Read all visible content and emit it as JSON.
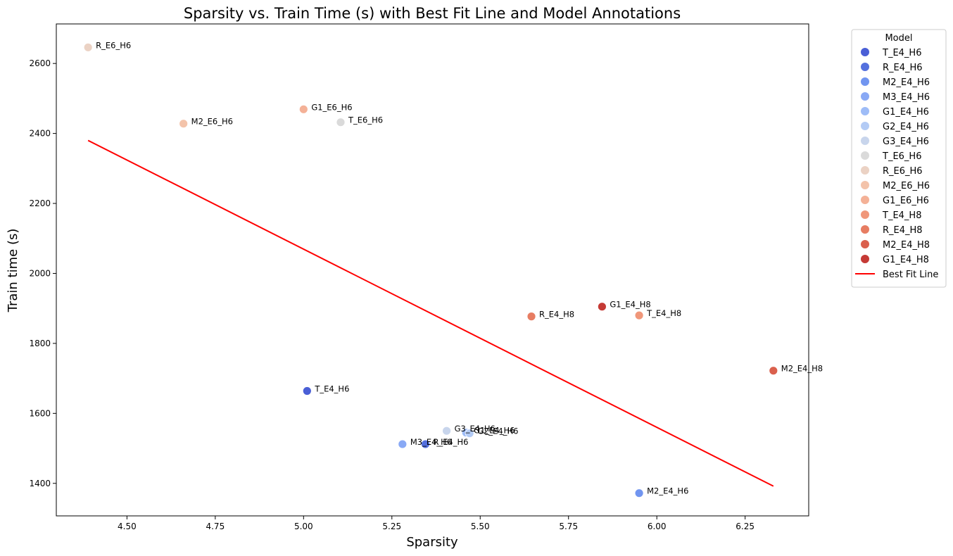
{
  "chart_data": {
    "type": "scatter",
    "title": "Sparsity vs. Train Time (s) with Best Fit Line and Model Annotations",
    "xlabel": "Sparsity",
    "ylabel": "Train time (s)",
    "xlim": [
      4.3,
      6.43
    ],
    "ylim": [
      1307,
      2713
    ],
    "xticks": [
      4.5,
      4.75,
      5.0,
      5.25,
      5.5,
      5.75,
      6.0,
      6.25
    ],
    "xtick_labels": [
      "4.50",
      "4.75",
      "5.00",
      "5.25",
      "5.50",
      "5.75",
      "6.00",
      "6.25"
    ],
    "yticks": [
      1400,
      1600,
      1800,
      2000,
      2200,
      2400,
      2600
    ],
    "ytick_labels": [
      "1400",
      "1600",
      "1800",
      "2000",
      "2200",
      "2400",
      "2600"
    ],
    "grid": false,
    "legend": {
      "title": "Model",
      "placement": "outside-right-top"
    },
    "points": [
      {
        "label": "T_E4_H6",
        "x": 5.01,
        "y": 1664,
        "color": "#4a5fd6"
      },
      {
        "label": "R_E4_H6",
        "x": 5.345,
        "y": 1512,
        "color": "#5470de"
      },
      {
        "label": "M2_E4_H6",
        "x": 5.95,
        "y": 1372,
        "color": "#7195f0"
      },
      {
        "label": "M3_E4_H6",
        "x": 5.28,
        "y": 1512,
        "color": "#89a9f5"
      },
      {
        "label": "G1_E4_H6",
        "x": 5.46,
        "y": 1545,
        "color": "#9ebcf7"
      },
      {
        "label": "G2_E4_H6",
        "x": 5.47,
        "y": 1543,
        "color": "#b3cbf5"
      },
      {
        "label": "G3_E4_H6",
        "x": 5.405,
        "y": 1550,
        "color": "#c8d5ec"
      },
      {
        "label": "T_E6_H6",
        "x": 5.105,
        "y": 2432,
        "color": "#dadada"
      },
      {
        "label": "R_E6_H6",
        "x": 4.39,
        "y": 2646,
        "color": "#ebd2c4"
      },
      {
        "label": "M2_E6_H6",
        "x": 4.66,
        "y": 2428,
        "color": "#f3c3aa"
      },
      {
        "label": "G1_E6_H6",
        "x": 5.0,
        "y": 2469,
        "color": "#f4b197"
      },
      {
        "label": "T_E4_H8",
        "x": 5.95,
        "y": 1880,
        "color": "#f0977a"
      },
      {
        "label": "R_E4_H8",
        "x": 5.645,
        "y": 1877,
        "color": "#e77d62"
      },
      {
        "label": "M2_E4_H8",
        "x": 6.33,
        "y": 1722,
        "color": "#da604d"
      },
      {
        "label": "G1_E4_H8",
        "x": 5.845,
        "y": 1905,
        "color": "#c53a35"
      }
    ],
    "legend_entries": [
      "T_E4_H6",
      "R_E4_H6",
      "M2_E4_H6",
      "M3_E4_H6",
      "G1_E4_H6",
      "G2_E4_H6",
      "G3_E4_H6",
      "T_E6_H6",
      "R_E6_H6",
      "M2_E6_H6",
      "G1_E6_H6",
      "T_E4_H8",
      "R_E4_H8",
      "M2_E4_H8",
      "G1_E4_H8"
    ],
    "best_fit": {
      "label": "Best Fit Line",
      "x_start": 4.39,
      "y_start": 2380,
      "x_end": 6.33,
      "y_end": 1392,
      "color": "#ff0000"
    }
  }
}
